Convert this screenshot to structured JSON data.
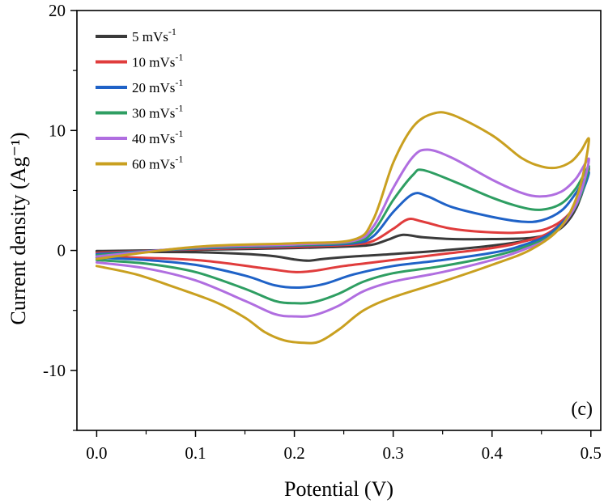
{
  "chart_data": {
    "type": "line",
    "title": "",
    "panel_label": "(c)",
    "xlabel": "Potential (V)",
    "ylabel": "Current density (Ag⁻¹)",
    "xlim": [
      -0.02,
      0.51
    ],
    "ylim": [
      -15,
      20
    ],
    "xticks": [
      0.0,
      0.1,
      0.2,
      0.3,
      0.4,
      0.5
    ],
    "xtick_labels": [
      "0.0",
      "0.1",
      "0.2",
      "0.3",
      "0.4",
      "0.5"
    ],
    "yticks": [
      -10,
      0,
      10,
      20
    ],
    "ytick_labels": [
      "-10",
      "0",
      "10",
      "20"
    ],
    "legend_position": "top-left",
    "series": [
      {
        "name": "5 mVs⁻¹",
        "label_main": "5 mVs",
        "label_sup": "-1",
        "color": "#3a3a3a",
        "forward": [
          [
            0.0,
            -0.05
          ],
          [
            0.1,
            0.05
          ],
          [
            0.2,
            0.2
          ],
          [
            0.26,
            0.35
          ],
          [
            0.28,
            0.5
          ],
          [
            0.295,
            0.9
          ],
          [
            0.31,
            1.3
          ],
          [
            0.33,
            1.1
          ],
          [
            0.36,
            0.95
          ],
          [
            0.4,
            0.95
          ],
          [
            0.44,
            1.05
          ],
          [
            0.465,
            1.6
          ],
          [
            0.48,
            2.8
          ],
          [
            0.49,
            4.5
          ],
          [
            0.497,
            6.5
          ]
        ],
        "reverse": [
          [
            0.497,
            6.5
          ],
          [
            0.485,
            3.5
          ],
          [
            0.465,
            1.6
          ],
          [
            0.44,
            0.9
          ],
          [
            0.4,
            0.4
          ],
          [
            0.35,
            0.0
          ],
          [
            0.3,
            -0.3
          ],
          [
            0.26,
            -0.5
          ],
          [
            0.23,
            -0.7
          ],
          [
            0.215,
            -0.85
          ],
          [
            0.2,
            -0.75
          ],
          [
            0.17,
            -0.4
          ],
          [
            0.1,
            -0.15
          ],
          [
            0.0,
            -0.15
          ]
        ]
      },
      {
        "name": "10 mVs⁻¹",
        "label_main": "10 mVs",
        "label_sup": "-1",
        "color": "#e03c3c",
        "forward": [
          [
            0.0,
            -0.2
          ],
          [
            0.1,
            0.1
          ],
          [
            0.2,
            0.3
          ],
          [
            0.26,
            0.5
          ],
          [
            0.28,
            0.8
          ],
          [
            0.3,
            1.8
          ],
          [
            0.315,
            2.6
          ],
          [
            0.33,
            2.4
          ],
          [
            0.36,
            1.8
          ],
          [
            0.4,
            1.5
          ],
          [
            0.43,
            1.5
          ],
          [
            0.455,
            1.8
          ],
          [
            0.475,
            2.8
          ],
          [
            0.49,
            4.6
          ],
          [
            0.498,
            6.8
          ]
        ],
        "reverse": [
          [
            0.498,
            6.8
          ],
          [
            0.485,
            3.8
          ],
          [
            0.46,
            1.6
          ],
          [
            0.43,
            0.7
          ],
          [
            0.4,
            0.2
          ],
          [
            0.35,
            -0.3
          ],
          [
            0.3,
            -0.8
          ],
          [
            0.25,
            -1.3
          ],
          [
            0.22,
            -1.7
          ],
          [
            0.2,
            -1.8
          ],
          [
            0.17,
            -1.5
          ],
          [
            0.1,
            -0.8
          ],
          [
            0.0,
            -0.5
          ]
        ]
      },
      {
        "name": "20 mVs⁻¹",
        "label_main": "20 mVs",
        "label_sup": "-1",
        "color": "#1f62c7",
        "forward": [
          [
            0.0,
            -0.3
          ],
          [
            0.1,
            0.15
          ],
          [
            0.2,
            0.4
          ],
          [
            0.26,
            0.6
          ],
          [
            0.28,
            1.2
          ],
          [
            0.3,
            3.2
          ],
          [
            0.32,
            4.7
          ],
          [
            0.335,
            4.5
          ],
          [
            0.36,
            3.6
          ],
          [
            0.4,
            2.8
          ],
          [
            0.43,
            2.4
          ],
          [
            0.45,
            2.5
          ],
          [
            0.47,
            3.3
          ],
          [
            0.485,
            4.8
          ],
          [
            0.498,
            6.5
          ]
        ],
        "reverse": [
          [
            0.498,
            6.5
          ],
          [
            0.485,
            3.8
          ],
          [
            0.46,
            1.5
          ],
          [
            0.43,
            0.4
          ],
          [
            0.4,
            -0.2
          ],
          [
            0.35,
            -0.8
          ],
          [
            0.3,
            -1.3
          ],
          [
            0.26,
            -2.0
          ],
          [
            0.23,
            -2.8
          ],
          [
            0.205,
            -3.1
          ],
          [
            0.18,
            -2.9
          ],
          [
            0.15,
            -2.1
          ],
          [
            0.1,
            -1.2
          ],
          [
            0.05,
            -0.8
          ],
          [
            0.0,
            -0.6
          ]
        ]
      },
      {
        "name": "30 mVs⁻¹",
        "label_main": "30 mVs",
        "label_sup": "-1",
        "color": "#2e9e62",
        "forward": [
          [
            0.0,
            -0.4
          ],
          [
            0.1,
            0.2
          ],
          [
            0.2,
            0.45
          ],
          [
            0.26,
            0.7
          ],
          [
            0.28,
            1.6
          ],
          [
            0.3,
            4.2
          ],
          [
            0.32,
            6.3
          ],
          [
            0.33,
            6.7
          ],
          [
            0.36,
            5.8
          ],
          [
            0.4,
            4.4
          ],
          [
            0.43,
            3.6
          ],
          [
            0.45,
            3.4
          ],
          [
            0.47,
            3.9
          ],
          [
            0.485,
            5.2
          ],
          [
            0.498,
            7.0
          ]
        ],
        "reverse": [
          [
            0.498,
            7.0
          ],
          [
            0.485,
            3.7
          ],
          [
            0.46,
            1.3
          ],
          [
            0.43,
            0.2
          ],
          [
            0.4,
            -0.5
          ],
          [
            0.35,
            -1.3
          ],
          [
            0.3,
            -1.9
          ],
          [
            0.27,
            -2.6
          ],
          [
            0.245,
            -3.6
          ],
          [
            0.22,
            -4.3
          ],
          [
            0.2,
            -4.4
          ],
          [
            0.18,
            -4.2
          ],
          [
            0.15,
            -3.2
          ],
          [
            0.1,
            -1.8
          ],
          [
            0.05,
            -1.1
          ],
          [
            0.0,
            -0.8
          ]
        ]
      },
      {
        "name": "40 mVs⁻¹",
        "label_main": "40 mVs",
        "label_sup": "-1",
        "color": "#b06ee0",
        "forward": [
          [
            0.0,
            -0.5
          ],
          [
            0.1,
            0.25
          ],
          [
            0.2,
            0.5
          ],
          [
            0.26,
            0.8
          ],
          [
            0.28,
            2.0
          ],
          [
            0.3,
            5.2
          ],
          [
            0.32,
            7.8
          ],
          [
            0.335,
            8.4
          ],
          [
            0.36,
            7.7
          ],
          [
            0.4,
            5.9
          ],
          [
            0.43,
            4.8
          ],
          [
            0.45,
            4.5
          ],
          [
            0.47,
            4.9
          ],
          [
            0.485,
            6.0
          ],
          [
            0.498,
            7.6
          ]
        ],
        "reverse": [
          [
            0.498,
            7.6
          ],
          [
            0.485,
            3.8
          ],
          [
            0.46,
            1.2
          ],
          [
            0.43,
            0.0
          ],
          [
            0.4,
            -0.8
          ],
          [
            0.35,
            -1.8
          ],
          [
            0.3,
            -2.6
          ],
          [
            0.27,
            -3.4
          ],
          [
            0.245,
            -4.6
          ],
          [
            0.22,
            -5.4
          ],
          [
            0.2,
            -5.5
          ],
          [
            0.18,
            -5.3
          ],
          [
            0.15,
            -4.2
          ],
          [
            0.1,
            -2.5
          ],
          [
            0.05,
            -1.5
          ],
          [
            0.0,
            -1.0
          ]
        ]
      },
      {
        "name": "60 mVs⁻¹",
        "label_main": "60 mVs",
        "label_sup": "-1",
        "color": "#c9a020",
        "forward": [
          [
            0.0,
            -0.7
          ],
          [
            0.1,
            0.3
          ],
          [
            0.2,
            0.6
          ],
          [
            0.26,
            0.9
          ],
          [
            0.28,
            2.6
          ],
          [
            0.3,
            7.3
          ],
          [
            0.32,
            10.3
          ],
          [
            0.34,
            11.4
          ],
          [
            0.36,
            11.3
          ],
          [
            0.4,
            9.6
          ],
          [
            0.43,
            7.7
          ],
          [
            0.45,
            7.0
          ],
          [
            0.465,
            6.9
          ],
          [
            0.48,
            7.4
          ],
          [
            0.49,
            8.3
          ],
          [
            0.498,
            9.2
          ]
        ],
        "reverse": [
          [
            0.498,
            9.2
          ],
          [
            0.488,
            5.0
          ],
          [
            0.47,
            2.0
          ],
          [
            0.44,
            0.1
          ],
          [
            0.4,
            -1.2
          ],
          [
            0.35,
            -2.6
          ],
          [
            0.3,
            -3.9
          ],
          [
            0.27,
            -5.0
          ],
          [
            0.245,
            -6.6
          ],
          [
            0.225,
            -7.6
          ],
          [
            0.21,
            -7.7
          ],
          [
            0.19,
            -7.5
          ],
          [
            0.17,
            -6.8
          ],
          [
            0.15,
            -5.6
          ],
          [
            0.12,
            -4.3
          ],
          [
            0.08,
            -3.1
          ],
          [
            0.04,
            -2.0
          ],
          [
            0.0,
            -1.3
          ]
        ]
      }
    ]
  }
}
